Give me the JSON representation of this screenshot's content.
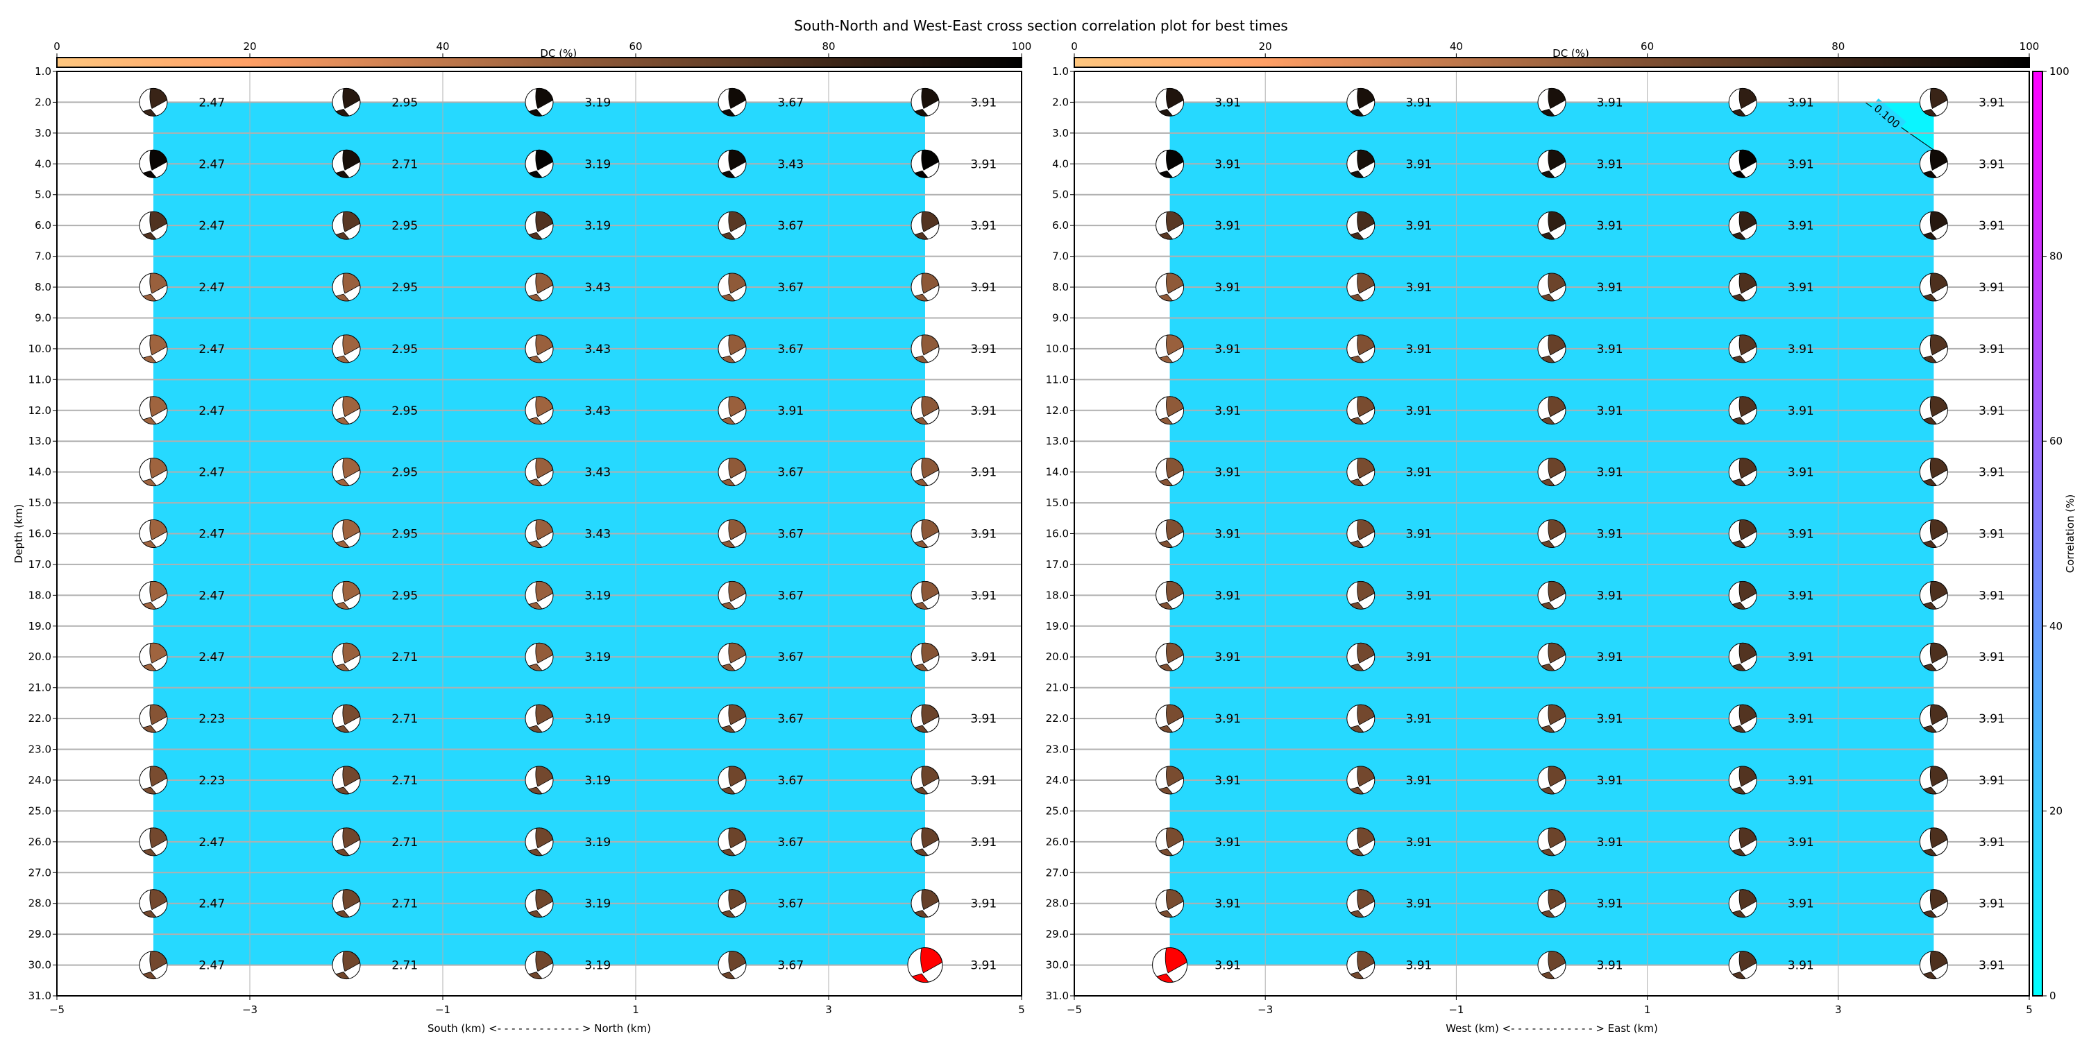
{
  "title": "South-North and West-East cross section correlation plot for best times",
  "dc_colorbar": {
    "label": "DC (%)",
    "ticks": [
      "0",
      "20",
      "40",
      "60",
      "80",
      "100"
    ],
    "colormap": "copper_r",
    "range": [
      0,
      100
    ]
  },
  "corr_colorbar": {
    "label": "Correlation (%)",
    "ticks": [
      "0",
      "20",
      "40",
      "60",
      "80",
      "100"
    ],
    "colormap": "cool",
    "range": [
      0,
      100
    ]
  },
  "colors": {
    "best_solution": "#ff0000",
    "grid": "#b0b0b0"
  },
  "chart_data": [
    {
      "type": "scatter",
      "marker": "beachball",
      "xlabel": "South (km) <- - - - - - - - - - - - > North (km)",
      "ylabel": "Depth (km)",
      "xlim": [
        -5,
        5
      ],
      "ylim": [
        31,
        1
      ],
      "xticks": [
        "−5",
        "−3",
        "−1",
        "1",
        "3",
        "5"
      ],
      "yticks": [
        "1.0",
        "2.0",
        "3.0",
        "4.0",
        "5.0",
        "6.0",
        "7.0",
        "8.0",
        "9.0",
        "10.0",
        "11.0",
        "12.0",
        "13.0",
        "14.0",
        "15.0",
        "16.0",
        "17.0",
        "18.0",
        "19.0",
        "20.0",
        "21.0",
        "22.0",
        "23.0",
        "24.0",
        "25.0",
        "26.0",
        "27.0",
        "28.0",
        "29.0",
        "30.0",
        "31.0"
      ],
      "grid": true,
      "x": [
        -4,
        -2,
        0,
        2,
        4
      ],
      "depths": [
        2,
        4,
        6,
        8,
        10,
        12,
        14,
        16,
        18,
        20,
        22,
        24,
        26,
        28,
        30
      ],
      "labels": [
        [
          "2.47",
          "2.95",
          "3.19",
          "3.67",
          "3.91"
        ],
        [
          "2.47",
          "2.71",
          "3.19",
          "3.43",
          "3.91"
        ],
        [
          "2.47",
          "2.95",
          "3.19",
          "3.67",
          "3.91"
        ],
        [
          "2.47",
          "2.95",
          "3.43",
          "3.67",
          "3.91"
        ],
        [
          "2.47",
          "2.95",
          "3.43",
          "3.67",
          "3.91"
        ],
        [
          "2.47",
          "2.95",
          "3.43",
          "3.91",
          "3.91"
        ],
        [
          "2.47",
          "2.95",
          "3.43",
          "3.67",
          "3.91"
        ],
        [
          "2.47",
          "2.95",
          "3.43",
          "3.67",
          "3.91"
        ],
        [
          "2.47",
          "2.95",
          "3.19",
          "3.67",
          "3.91"
        ],
        [
          "2.47",
          "2.71",
          "3.19",
          "3.67",
          "3.91"
        ],
        [
          "2.23",
          "2.71",
          "3.19",
          "3.67",
          "3.91"
        ],
        [
          "2.23",
          "2.71",
          "3.19",
          "3.67",
          "3.91"
        ],
        [
          "2.47",
          "2.71",
          "3.19",
          "3.67",
          "3.91"
        ],
        [
          "2.47",
          "2.71",
          "3.19",
          "3.67",
          "3.91"
        ],
        [
          "2.47",
          "2.71",
          "3.19",
          "3.67",
          "3.91"
        ]
      ],
      "dc": [
        [
          82,
          88,
          95,
          95,
          92
        ],
        [
          97,
          92,
          98,
          95,
          99
        ],
        [
          75,
          72,
          75,
          72,
          74
        ],
        [
          52,
          52,
          54,
          55,
          56
        ],
        [
          50,
          50,
          52,
          54,
          55
        ],
        [
          50,
          50,
          50,
          52,
          56
        ],
        [
          50,
          50,
          52,
          55,
          56
        ],
        [
          50,
          50,
          52,
          55,
          56
        ],
        [
          50,
          50,
          52,
          55,
          56
        ],
        [
          50,
          52,
          54,
          56,
          58
        ],
        [
          58,
          62,
          62,
          64,
          66
        ],
        [
          62,
          64,
          64,
          65,
          66
        ],
        [
          64,
          65,
          65,
          66,
          68
        ],
        [
          64,
          65,
          65,
          66,
          68
        ],
        [
          64,
          65,
          65,
          66,
          68
        ]
      ],
      "best": {
        "x": 4,
        "depth": 30
      },
      "correlation_fill": {
        "x": [
          -4,
          4
        ],
        "depth": [
          2,
          30
        ],
        "value": 15
      }
    },
    {
      "type": "scatter",
      "marker": "beachball",
      "xlabel": "West (km) <- - - - - - - - - - - - > East (km)",
      "ylabel": "",
      "xlim": [
        -5,
        5
      ],
      "ylim": [
        31,
        1
      ],
      "xticks": [
        "−5",
        "−3",
        "−1",
        "1",
        "3",
        "5"
      ],
      "yticks": [
        "1.0",
        "2.0",
        "3.0",
        "4.0",
        "5.0",
        "6.0",
        "7.0",
        "8.0",
        "9.0",
        "10.0",
        "11.0",
        "12.0",
        "13.0",
        "14.0",
        "15.0",
        "16.0",
        "17.0",
        "18.0",
        "19.0",
        "20.0",
        "21.0",
        "22.0",
        "23.0",
        "24.0",
        "25.0",
        "26.0",
        "27.0",
        "28.0",
        "29.0",
        "30.0",
        "31.0"
      ],
      "grid": true,
      "x": [
        -4,
        -2,
        0,
        2,
        4
      ],
      "depths": [
        2,
        4,
        6,
        8,
        10,
        12,
        14,
        16,
        18,
        20,
        22,
        24,
        26,
        28,
        30
      ],
      "labels": [
        [
          "3.91",
          "3.91",
          "3.91",
          "3.91",
          "3.91"
        ],
        [
          "3.91",
          "3.91",
          "3.91",
          "3.91",
          "3.91"
        ],
        [
          "3.91",
          "3.91",
          "3.91",
          "3.91",
          "3.91"
        ],
        [
          "3.91",
          "3.91",
          "3.91",
          "3.91",
          "3.91"
        ],
        [
          "3.91",
          "3.91",
          "3.91",
          "3.91",
          "3.91"
        ],
        [
          "3.91",
          "3.91",
          "3.91",
          "3.91",
          "3.91"
        ],
        [
          "3.91",
          "3.91",
          "3.91",
          "3.91",
          "3.91"
        ],
        [
          "3.91",
          "3.91",
          "3.91",
          "3.91",
          "3.91"
        ],
        [
          "3.91",
          "3.91",
          "3.91",
          "3.91",
          "3.91"
        ],
        [
          "3.91",
          "3.91",
          "3.91",
          "3.91",
          "3.91"
        ],
        [
          "3.91",
          "3.91",
          "3.91",
          "3.91",
          "3.91"
        ],
        [
          "3.91",
          "3.91",
          "3.91",
          "3.91",
          "3.91"
        ],
        [
          "3.91",
          "3.91",
          "3.91",
          "3.91",
          "3.91"
        ],
        [
          "3.91",
          "3.91",
          "3.91",
          "3.91",
          "3.91"
        ],
        [
          "3.91",
          "3.91",
          "3.91",
          "3.91",
          "3.91"
        ]
      ],
      "dc": [
        [
          90,
          92,
          92,
          85,
          82
        ],
        [
          98,
          92,
          92,
          99,
          95
        ],
        [
          72,
          78,
          85,
          84,
          88
        ],
        [
          55,
          62,
          66,
          76,
          76
        ],
        [
          52,
          60,
          68,
          72,
          74
        ],
        [
          55,
          62,
          66,
          74,
          76
        ],
        [
          58,
          62,
          66,
          74,
          76
        ],
        [
          60,
          63,
          66,
          74,
          76
        ],
        [
          60,
          63,
          66,
          74,
          76
        ],
        [
          60,
          64,
          66,
          74,
          76
        ],
        [
          62,
          64,
          66,
          74,
          76
        ],
        [
          62,
          64,
          66,
          74,
          76
        ],
        [
          62,
          64,
          66,
          74,
          76
        ],
        [
          62,
          64,
          66,
          74,
          76
        ],
        [
          62,
          64,
          66,
          74,
          76
        ]
      ],
      "best": {
        "x": -4,
        "depth": 30
      },
      "correlation_fill": {
        "x": [
          -4,
          4
        ],
        "depth": [
          2,
          30
        ],
        "value": 15
      },
      "contour": {
        "label": "0.100",
        "level": 0.1,
        "path": [
          [
            3.28,
            2
          ],
          [
            4,
            3.55
          ]
        ],
        "inner_value": 4
      }
    }
  ]
}
